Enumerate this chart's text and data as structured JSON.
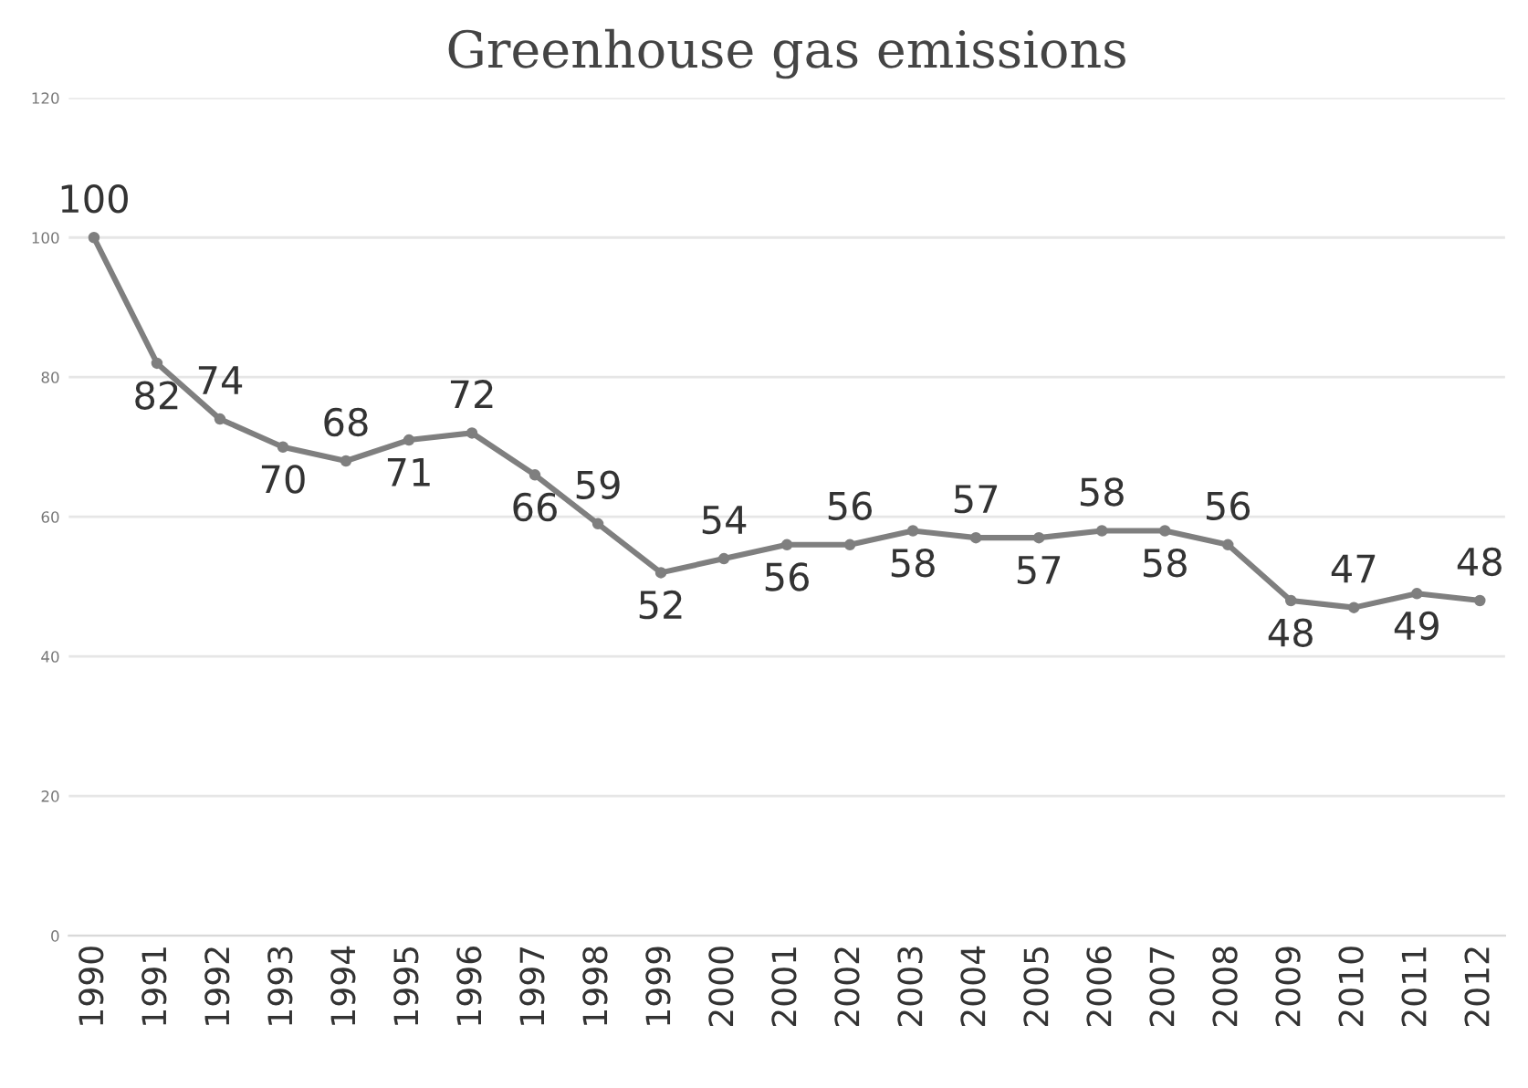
{
  "chart_data": {
    "type": "line",
    "title": "Greenhouse gas emissions",
    "categories": [
      "1990",
      "1991",
      "1992",
      "1993",
      "1994",
      "1995",
      "1996",
      "1997",
      "1998",
      "1999",
      "2000",
      "2001",
      "2002",
      "2003",
      "2004",
      "2005",
      "2006",
      "2007",
      "2008",
      "2009",
      "2010",
      "2011",
      "2012"
    ],
    "series": [
      {
        "color": "#7f7f7f",
        "values": [
          100,
          82,
          74,
          70,
          68,
          71,
          72,
          66,
          59,
          52,
          54,
          56,
          56,
          58,
          57,
          57,
          58,
          58,
          56,
          48,
          47,
          49,
          48
        ]
      }
    ],
    "ylim": [
      0,
      120
    ],
    "yticks": [
      0,
      20,
      40,
      60,
      80,
      100,
      120
    ],
    "grid": "y",
    "marker": "circle",
    "line_style": "solid",
    "data_labels": true
  }
}
